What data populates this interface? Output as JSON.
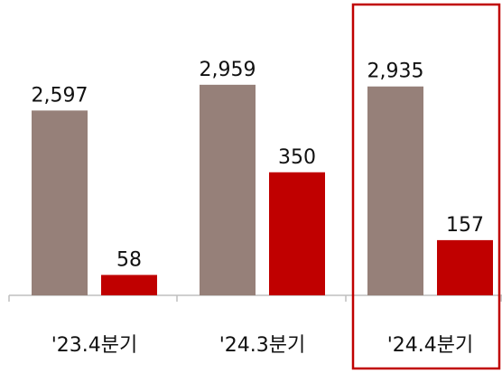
{
  "chart_data": {
    "type": "bar",
    "categories": [
      "'23.4분기",
      "'24.3분기",
      "'24.4분기"
    ],
    "series": [
      {
        "color": "#968079",
        "values": [
          2597,
          2959,
          2935
        ],
        "value_labels": [
          "2,597",
          "2,959",
          "2,935"
        ]
      },
      {
        "color": "#c00000",
        "values": [
          58,
          350,
          157
        ],
        "axis": "y2"
      }
    ],
    "ylim": [
      0,
      4150
    ],
    "y2lim": [
      0,
      840
    ],
    "highlight_color": "#c00000"
  }
}
